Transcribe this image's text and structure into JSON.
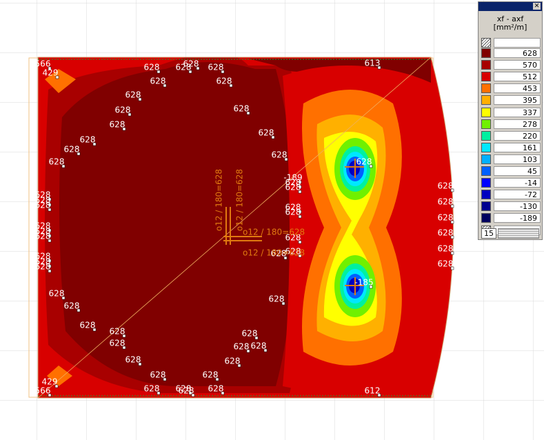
{
  "legend": {
    "title": "xf - axf",
    "unit": "[mm²/m]",
    "count": "15",
    "levels": [
      {
        "value": "628",
        "color": "#800000"
      },
      {
        "value": "570",
        "color": "#a80000"
      },
      {
        "value": "512",
        "color": "#d80000"
      },
      {
        "value": "453",
        "color": "#ff7000"
      },
      {
        "value": "395",
        "color": "#ffb000"
      },
      {
        "value": "337",
        "color": "#ffff00"
      },
      {
        "value": "278",
        "color": "#70f000"
      },
      {
        "value": "220",
        "color": "#00f0a0"
      },
      {
        "value": "161",
        "color": "#00e8ff"
      },
      {
        "value": "103",
        "color": "#00b0ff"
      },
      {
        "value": "45",
        "color": "#0060ff"
      },
      {
        "value": "-14",
        "color": "#0000ff"
      },
      {
        "value": "-72",
        "color": "#0000c0"
      },
      {
        "value": "-130",
        "color": "#000090"
      },
      {
        "value": "-189",
        "color": "#000060"
      }
    ]
  },
  "plot": {
    "labels": [
      "566",
      "429",
      "628",
      "628",
      "628",
      "628",
      "613",
      "628",
      "628",
      "628",
      "628",
      "628",
      "628",
      "628",
      "628",
      "628",
      "628",
      "628",
      "628",
      "-189",
      "628",
      "628",
      "628",
      "628",
      "628",
      "628",
      "628",
      "628",
      "628",
      "628",
      "628",
      "628",
      "628",
      "628",
      "628",
      "628",
      "628",
      "628",
      "628",
      "628",
      "628",
      "628",
      "628",
      "628",
      "628",
      "628",
      "628",
      "628",
      "628",
      "628",
      "628",
      "628",
      "628",
      "628",
      "628",
      "628",
      "628",
      "628",
      "628",
      "429",
      "566",
      "612",
      "-185"
    ],
    "rebar": [
      "o12 / 180=628",
      "o12 / 180=628",
      "o12 / 180=628",
      "o12 / 180=628"
    ]
  }
}
